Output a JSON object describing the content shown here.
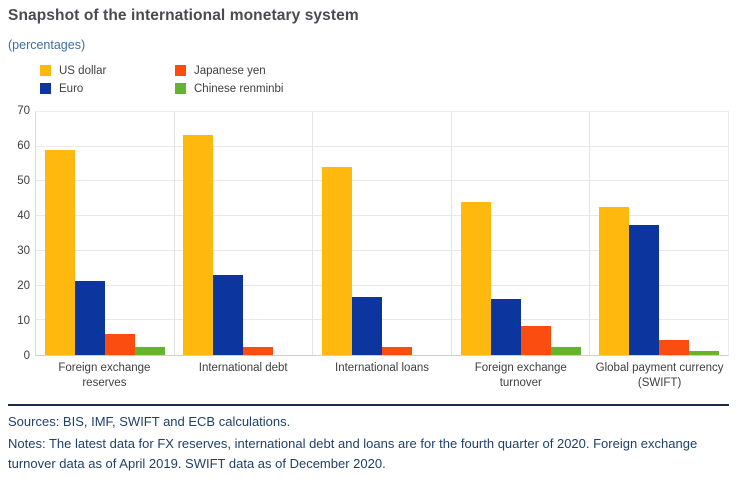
{
  "title": "Snapshot of the international monetary system",
  "subtitle": "(percentages)",
  "legend": [
    {
      "label": "US dollar",
      "color": "#ffb80e"
    },
    {
      "label": "Euro",
      "color": "#0d359e"
    },
    {
      "label": "Japanese yen",
      "color": "#fb4d0f"
    },
    {
      "label": "Chinese renminbi",
      "color": "#66b32e"
    }
  ],
  "chart_data": {
    "type": "bar",
    "title": "Snapshot of the international monetary system",
    "ylabel": "percentages",
    "ylim": [
      0,
      70
    ],
    "yticks": [
      0,
      10,
      20,
      30,
      40,
      50,
      60,
      70
    ],
    "grid": true,
    "legend_position": "top-left",
    "categories": [
      "Foreign exchange reserves",
      "International debt",
      "International loans",
      "Foreign exchange turnover",
      "Global payment currency (SWIFT)"
    ],
    "series": [
      {
        "name": "US dollar",
        "color": "#ffb80e",
        "values": [
          59.0,
          63.4,
          54.3,
          44.2,
          42.5
        ]
      },
      {
        "name": "Euro",
        "color": "#0d359e",
        "values": [
          21.2,
          23.1,
          16.6,
          16.2,
          37.4
        ]
      },
      {
        "name": "Japanese yen",
        "color": "#fb4d0f",
        "values": [
          6.0,
          2.4,
          2.3,
          8.4,
          4.2
        ]
      },
      {
        "name": "Chinese renminbi",
        "color": "#66b32e",
        "values": [
          2.3,
          0,
          0,
          2.2,
          1.1
        ]
      }
    ]
  },
  "footer": {
    "sources": "Sources: BIS, IMF, SWIFT and ECB calculations.",
    "notes": "Notes: The latest data for FX reserves, international debt and loans are for the fourth quarter of 2020. Foreign exchange turnover data as of April 2019. SWIFT data as of December 2020."
  }
}
